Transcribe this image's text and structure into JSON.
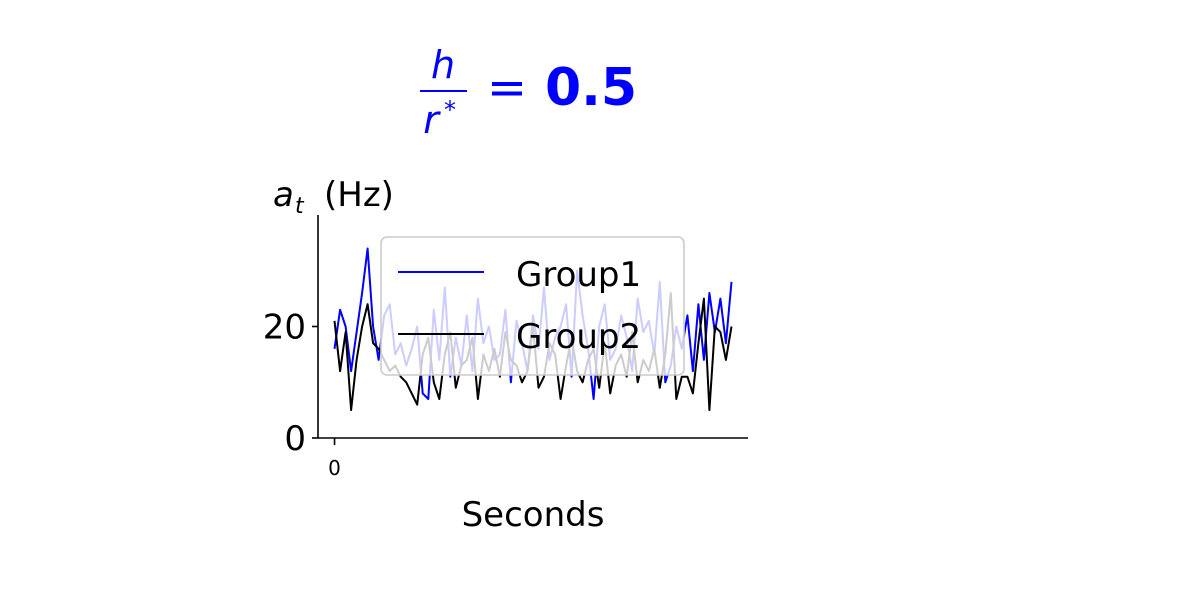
{
  "title": {
    "numerator": "h",
    "denominator": "r",
    "denominator_sup": "*",
    "equals": "=",
    "value": "0.5",
    "color": "#0000ff"
  },
  "colors": {
    "group1": "#0000ff",
    "group2": "#000000",
    "axis": "#000000",
    "legend_border": "#cccccc"
  },
  "chart_data": {
    "type": "line",
    "ylabel_var": "a",
    "ylabel_sub": "t",
    "ylabel_unit": "(Hz)",
    "xlabel": "Seconds",
    "x_ticks": [
      "0"
    ],
    "y_ticks": [
      0,
      20
    ],
    "ylim": [
      0,
      40
    ],
    "xlim": [
      -3,
      75
    ],
    "grid": false,
    "legend_position": "top-center",
    "legend": [
      "Group1",
      "Group2"
    ],
    "x": [
      0,
      1,
      2,
      3,
      4,
      5,
      6,
      7,
      8,
      9,
      10,
      11,
      12,
      13,
      14,
      15,
      16,
      17,
      18,
      19,
      20,
      21,
      22,
      23,
      24,
      25,
      26,
      27,
      28,
      29,
      30,
      31,
      32,
      33,
      34,
      35,
      36,
      37,
      38,
      39,
      40,
      41,
      42,
      43,
      44,
      45,
      46,
      47,
      48,
      49,
      50,
      51,
      52,
      53,
      54,
      55,
      56,
      57,
      58,
      59,
      60,
      61,
      62,
      63,
      64,
      65,
      66,
      67,
      68,
      69,
      70,
      71,
      72
    ],
    "series": [
      {
        "name": "Group1",
        "values": [
          16,
          23,
          20,
          12,
          19,
          26,
          34,
          20,
          14,
          22,
          24,
          15,
          17,
          13,
          16,
          20,
          8,
          7,
          23,
          14,
          27,
          11,
          18,
          13,
          22,
          12,
          25,
          17,
          20,
          14,
          15,
          23,
          10,
          21,
          17,
          12,
          22,
          16,
          27,
          14,
          18,
          20,
          24,
          11,
          30,
          22,
          16,
          7,
          20,
          24,
          14,
          16,
          22,
          18,
          12,
          25,
          19,
          21,
          15,
          28,
          10,
          13,
          20,
          16,
          22,
          12,
          24,
          14,
          26,
          19,
          25,
          17,
          28
        ]
      },
      {
        "name": "Group2",
        "values": [
          21,
          12,
          19,
          5,
          14,
          20,
          24,
          17,
          16,
          14,
          12,
          13,
          11,
          10,
          8,
          6,
          15,
          18,
          10,
          7,
          15,
          19,
          9,
          13,
          14,
          18,
          7,
          15,
          12,
          16,
          11,
          19,
          14,
          13,
          10,
          12,
          20,
          9,
          11,
          17,
          15,
          7,
          13,
          18,
          12,
          10,
          14,
          16,
          9,
          17,
          8,
          13,
          15,
          11,
          19,
          10,
          14,
          12,
          16,
          9,
          15,
          26,
          7,
          11,
          11,
          8,
          17,
          25,
          5,
          20,
          19,
          14,
          20
        ]
      }
    ]
  }
}
